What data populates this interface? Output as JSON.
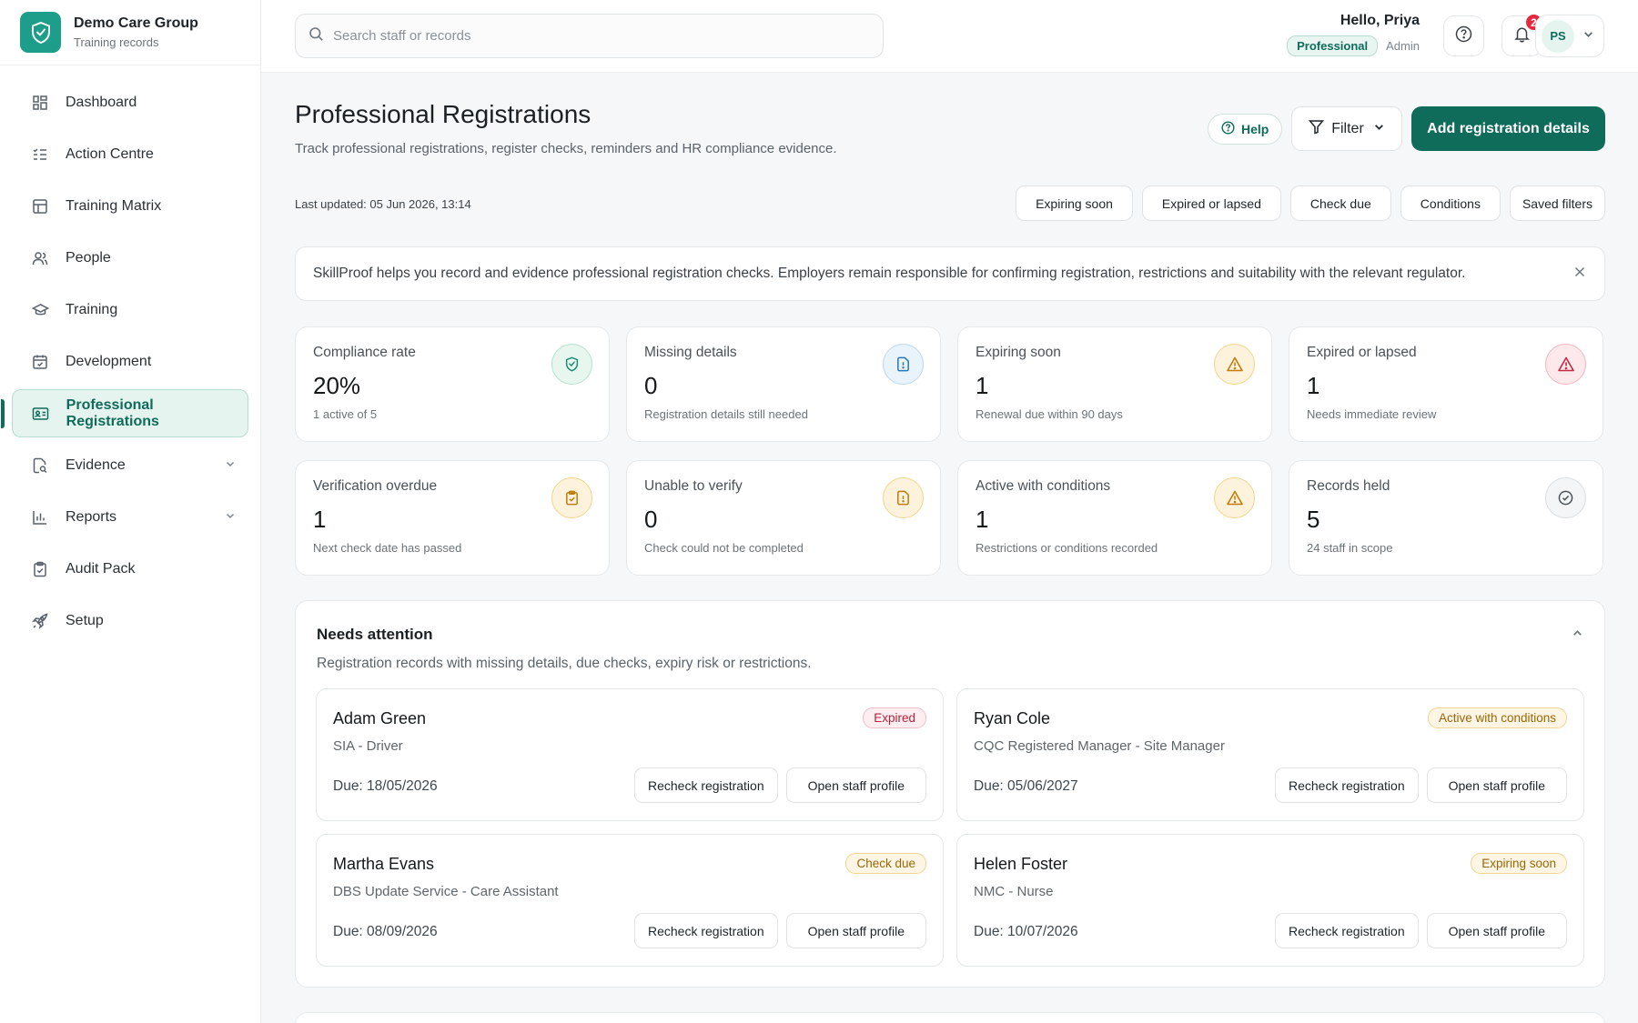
{
  "brand": {
    "name": "Demo Care Group",
    "subtitle": "Training records"
  },
  "sidebar": {
    "items": [
      {
        "label": "Dashboard",
        "icon": "dashboard-icon"
      },
      {
        "label": "Action Centre",
        "icon": "list-check-icon"
      },
      {
        "label": "Training Matrix",
        "icon": "table-icon"
      },
      {
        "label": "People",
        "icon": "users-icon"
      },
      {
        "label": "Training",
        "icon": "graduation-cap-icon"
      },
      {
        "label": "Development",
        "icon": "calendar-check-icon"
      },
      {
        "label": "Professional Registrations",
        "icon": "id-card-icon",
        "active": true
      },
      {
        "label": "Evidence",
        "icon": "file-search-icon",
        "expandable": true
      },
      {
        "label": "Reports",
        "icon": "bar-chart-icon",
        "expandable": true
      },
      {
        "label": "Audit Pack",
        "icon": "clipboard-check-icon"
      },
      {
        "label": "Setup",
        "icon": "rocket-icon"
      }
    ]
  },
  "topbar": {
    "search_placeholder": "Search staff or records",
    "greeting": "Hello, Priya",
    "role_badge": "Professional",
    "role": "Admin",
    "notification_count": "2",
    "avatar_initials": "PS"
  },
  "page": {
    "title": "Professional Registrations",
    "subtitle": "Track professional registrations, register checks, reminders and HR compliance evidence.",
    "help_label": "Help",
    "filter_label": "Filter",
    "primary_action": "Add registration details",
    "last_updated": "Last updated: 05 Jun 2026, 13:14",
    "quick_filters": [
      "Expiring soon",
      "Expired or lapsed",
      "Check due",
      "Conditions",
      "Saved filters"
    ],
    "notice": "SkillProof helps you record and evidence professional registration checks. Employers remain responsible for confirming registration, restrictions and suitability with the relevant regulator."
  },
  "stats": [
    {
      "label": "Compliance rate",
      "value": "20%",
      "note": "1 active of 5",
      "icon": "shield-check-icon",
      "tone": "green"
    },
    {
      "label": "Missing details",
      "value": "0",
      "note": "Registration details still needed",
      "icon": "file-alert-icon",
      "tone": "blue"
    },
    {
      "label": "Expiring soon",
      "value": "1",
      "note": "Renewal due within 90 days",
      "icon": "warning-icon",
      "tone": "amber"
    },
    {
      "label": "Expired or lapsed",
      "value": "1",
      "note": "Needs immediate review",
      "icon": "warning-icon",
      "tone": "red"
    },
    {
      "label": "Verification overdue",
      "value": "1",
      "note": "Next check date has passed",
      "icon": "clipboard-check-icon",
      "tone": "amber"
    },
    {
      "label": "Unable to verify",
      "value": "0",
      "note": "Check could not be completed",
      "icon": "file-alert-icon",
      "tone": "amber"
    },
    {
      "label": "Active with conditions",
      "value": "1",
      "note": "Restrictions or conditions recorded",
      "icon": "warning-icon",
      "tone": "amber"
    },
    {
      "label": "Records held",
      "value": "5",
      "note": "24 staff in scope",
      "icon": "check-circle-icon",
      "tone": "gray"
    }
  ],
  "attention": {
    "title": "Needs attention",
    "subtitle": "Registration records with missing details, due checks, expiry risk or restrictions.",
    "recheck_label": "Recheck registration",
    "open_label": "Open staff profile",
    "records": [
      {
        "name": "Adam Green",
        "registration": "SIA - Driver",
        "due": "Due: 18/05/2026",
        "status": "Expired",
        "tone": "expired"
      },
      {
        "name": "Ryan Cole",
        "registration": "CQC Registered Manager - Site Manager",
        "due": "Due: 05/06/2027",
        "status": "Active with conditions",
        "tone": "conditions"
      },
      {
        "name": "Martha Evans",
        "registration": "DBS Update Service - Care Assistant",
        "due": "Due: 08/09/2026",
        "status": "Check due",
        "tone": "conditions"
      },
      {
        "name": "Helen Foster",
        "registration": "NMC - Nurse",
        "due": "Due: 10/07/2026",
        "status": "Expiring soon",
        "tone": "conditions"
      }
    ]
  },
  "colors": {
    "brand": "#1d9e8a",
    "primary": "#0f6b5a",
    "danger": "#e5293f"
  }
}
